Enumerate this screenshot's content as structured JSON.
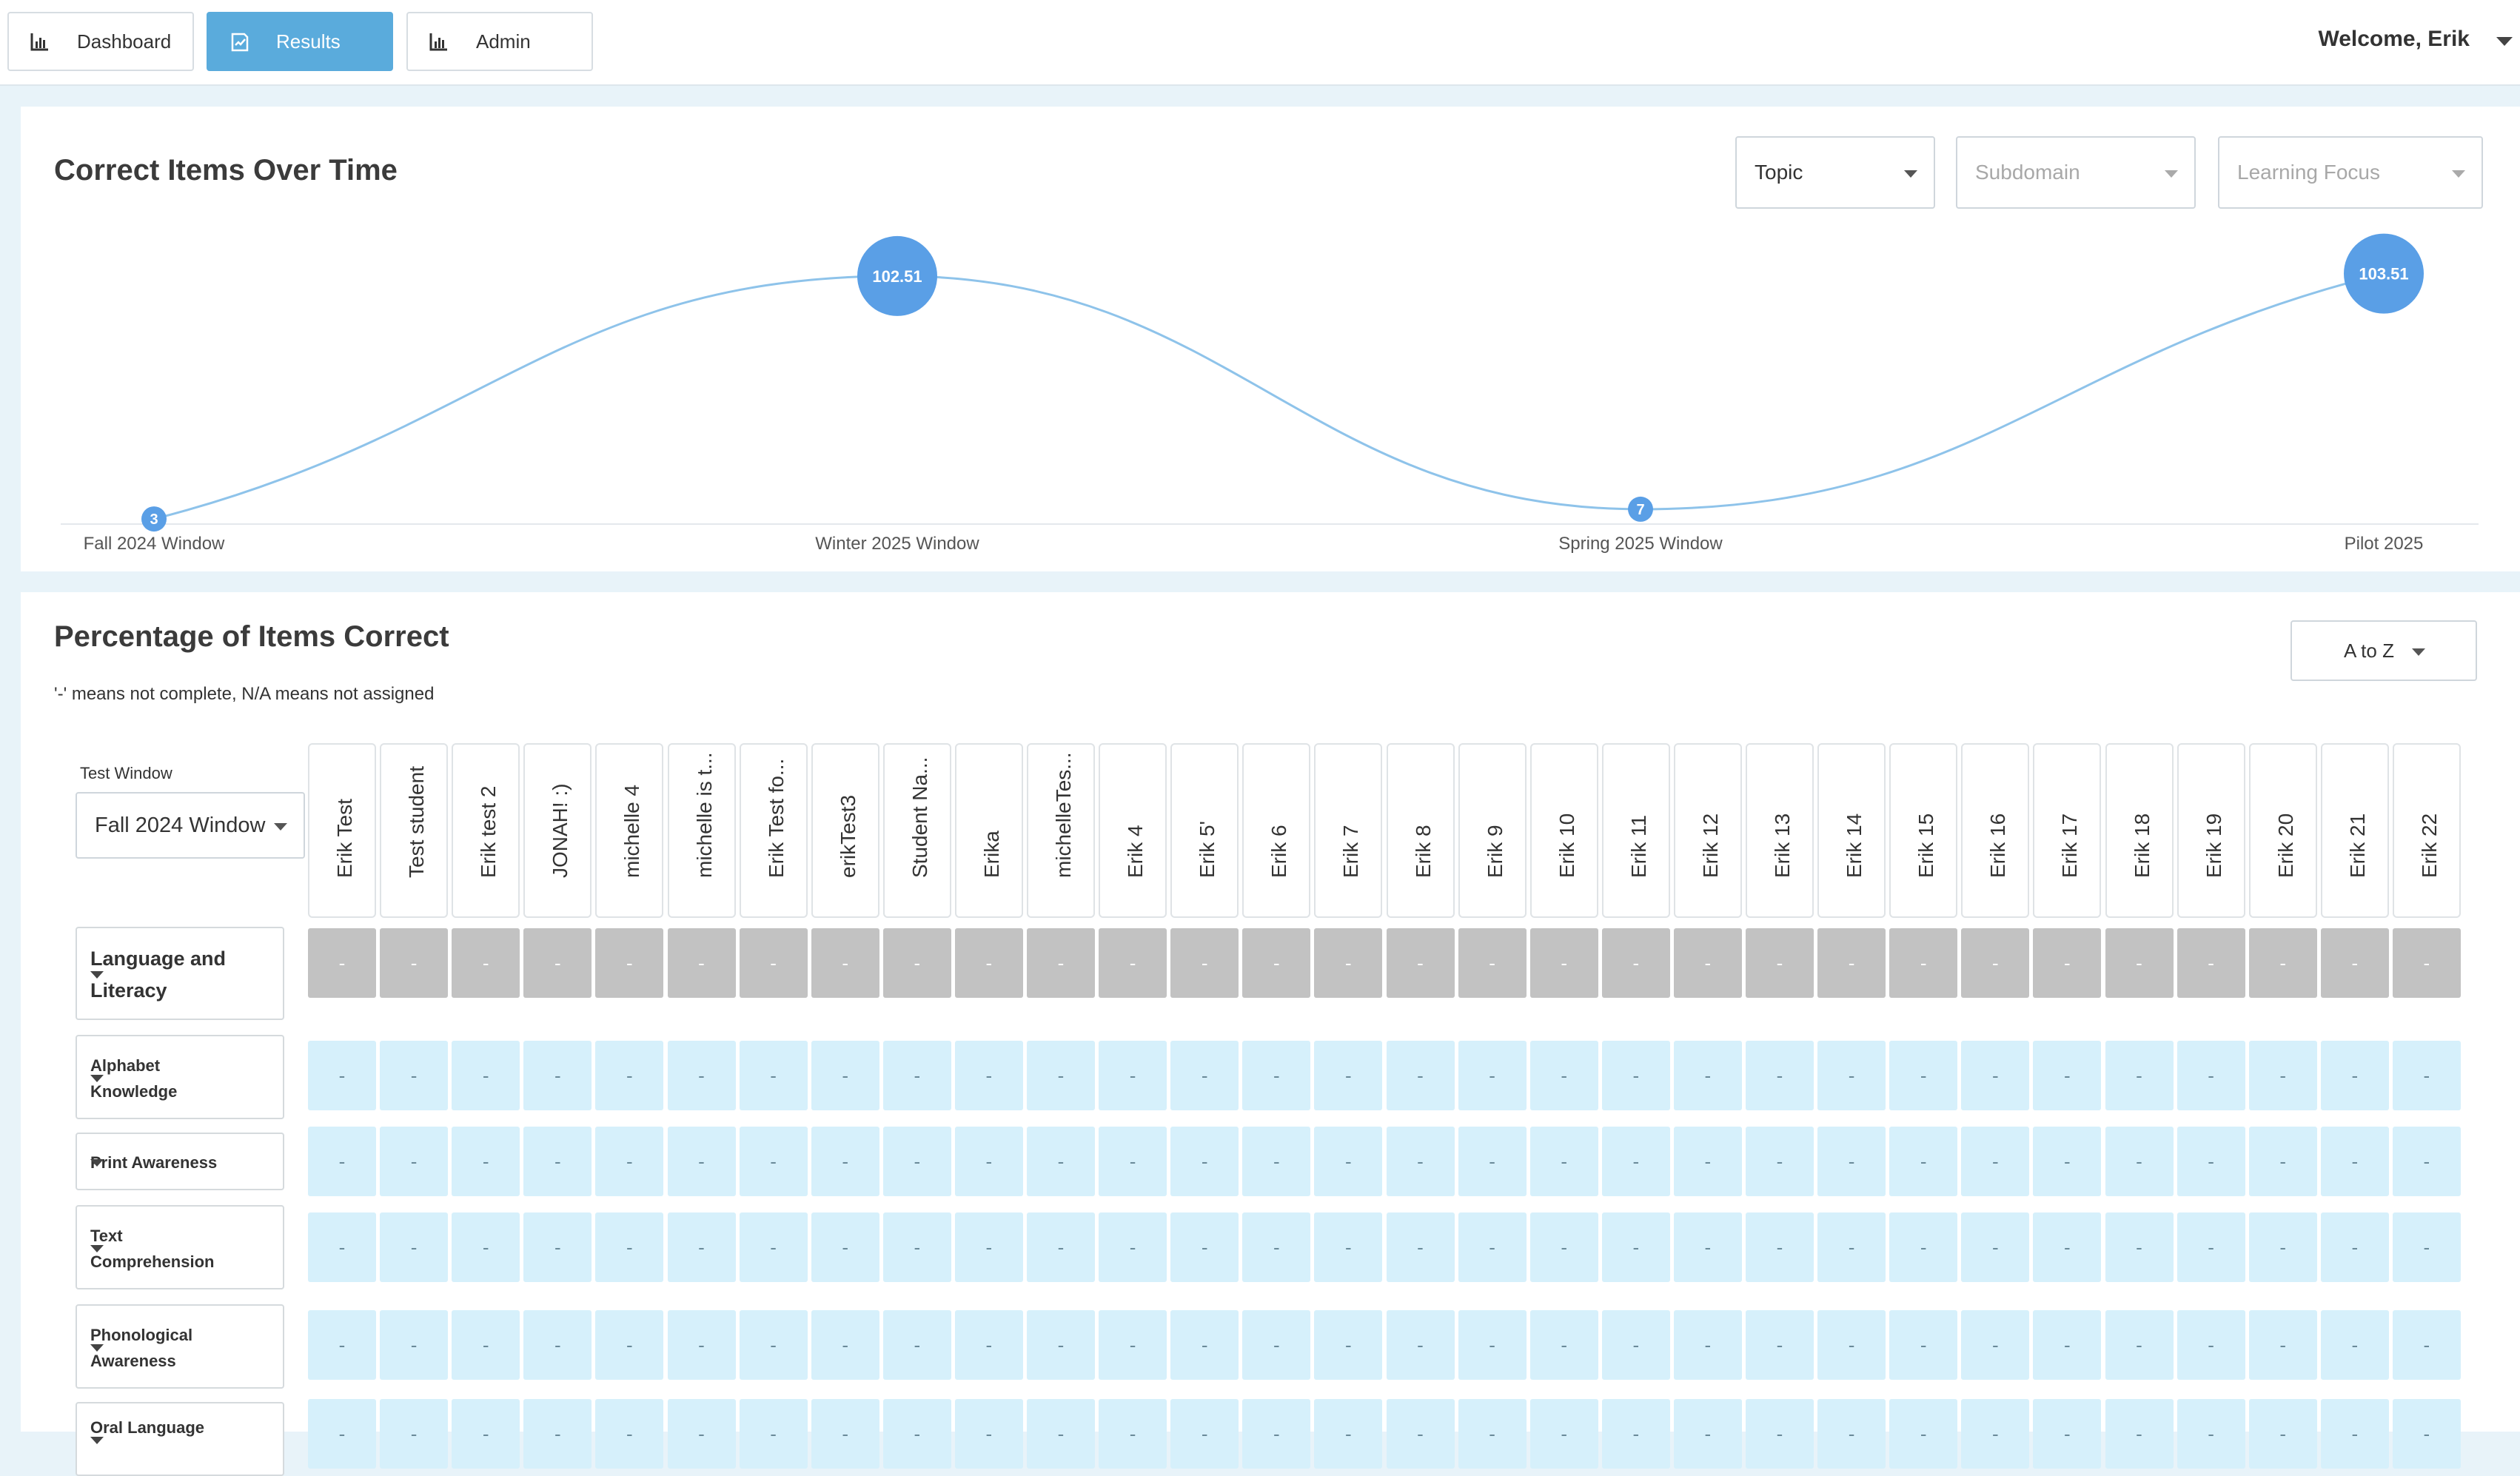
{
  "nav": {
    "dashboard": "Dashboard",
    "results": "Results",
    "admin": "Admin",
    "welcome": "Welcome, Erik"
  },
  "chart_panel": {
    "title": "Correct Items Over Time",
    "filters": {
      "topic": "Topic",
      "subdomain": "Subdomain",
      "learning_focus": "Learning Focus"
    }
  },
  "chart_data": {
    "type": "line",
    "title": "Correct Items Over Time",
    "categories": [
      "Fall 2024 Window",
      "Winter 2025 Window",
      "Spring 2025 Window",
      "Pilot 2025"
    ],
    "series": [
      {
        "values": [
          3,
          102.51,
          7,
          103.51
        ]
      }
    ],
    "point_labels": [
      "3",
      "102.51",
      "7",
      "103.51"
    ],
    "color": "#5a9fe6",
    "line_color": "#8ec3ea",
    "grid": false
  },
  "table_panel": {
    "title": "Percentage of Items Correct",
    "note": "'-' means not complete, N/A means not assigned",
    "sort": "A to Z",
    "test_window_label": "Test Window",
    "test_window": "Fall 2024 Window",
    "students": [
      "Erik Test",
      "Test student",
      "Erik test 2",
      "JONAH! :)",
      "michelle 4",
      "michelle is t...",
      "Erik Test fo...",
      "erikTest3",
      "Student Na...",
      "Erika",
      "michelleTes...",
      "Erik 4",
      "Erik 5'",
      "Erik 6",
      "Erik 7",
      "Erik 8",
      "Erik 9",
      "Erik 10",
      "Erik 11",
      "Erik 12",
      "Erik 13",
      "Erik 14",
      "Erik 15",
      "Erik 16",
      "Erik 17",
      "Erik 18",
      "Erik 19",
      "Erik 20",
      "Erik 21",
      "Erik 22"
    ],
    "cell_value": "-",
    "rows": [
      {
        "label": "Language and Literacy",
        "style": "gray"
      },
      {
        "label": "Alphabet Knowledge",
        "style": "blue"
      },
      {
        "label": "Print Awareness",
        "style": "blue"
      },
      {
        "label": "Text Comprehension",
        "style": "blue"
      },
      {
        "label": "Phonological Awareness",
        "style": "blue"
      },
      {
        "label": "Oral Language",
        "style": "blue"
      }
    ]
  },
  "colors": {
    "accent": "#5aabdc",
    "gray_cell": "#c2c2c2",
    "blue_cell": "#d6f0fb"
  }
}
